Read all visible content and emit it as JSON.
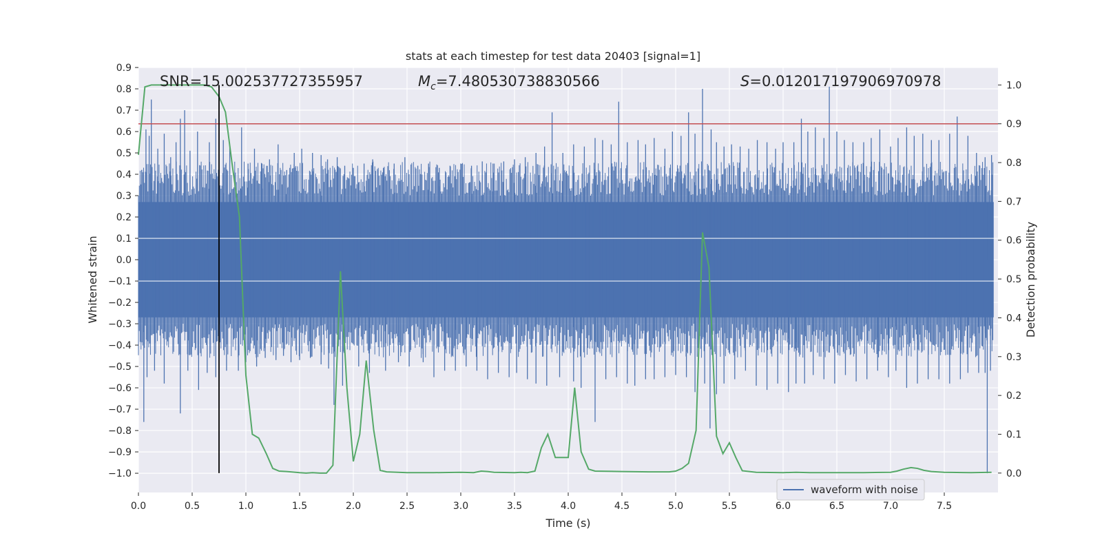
{
  "chart_data": {
    "type": "line",
    "title": "stats at each timestep for test data 20403 [signal=1]",
    "xlabel": "Time (s)",
    "ylabel_left": "Whitened strain",
    "ylabel_right": "Detection probability",
    "annotations": {
      "snr": "SNR=15.002537727355957",
      "mc": "M_c=7.480530738830566",
      "s": "S=0.012017197906970978"
    },
    "xlim": [
      0.0,
      8.0
    ],
    "ylim_left": [
      -1.09,
      0.9
    ],
    "ylim_right": [
      -0.05,
      1.045
    ],
    "x_ticks": [
      0.0,
      0.5,
      1.0,
      1.5,
      2.0,
      2.5,
      3.0,
      3.5,
      4.0,
      4.5,
      5.0,
      5.5,
      6.0,
      6.5,
      7.0,
      7.5
    ],
    "x_tick_labels": [
      "0.0",
      "0.5",
      "1.0",
      "1.5",
      "2.0",
      "2.5",
      "3.0",
      "3.5",
      "4.0",
      "4.5",
      "5.0",
      "5.5",
      "6.0",
      "6.5",
      "7.0",
      "7.5"
    ],
    "y_ticks_left": [
      0.9,
      0.8,
      0.7,
      0.6,
      0.5,
      0.4,
      0.3,
      0.2,
      0.1,
      0.0,
      -0.1,
      -0.2,
      -0.3,
      -0.4,
      -0.5,
      -0.6,
      -0.7,
      -0.8,
      -0.9,
      -1.0
    ],
    "y_tick_labels_left": [
      "0.9",
      "0.8",
      "0.7",
      "0.6",
      "0.5",
      "0.4",
      "0.3",
      "0.2",
      "0.1",
      "0.0",
      "−0.1",
      "−0.2",
      "−0.3",
      "−0.4",
      "−0.5",
      "−0.6",
      "−0.7",
      "−0.8",
      "−0.9",
      "−1.0"
    ],
    "y_ticks_right": [
      1.0,
      0.9,
      0.8,
      0.7,
      0.6,
      0.5,
      0.4,
      0.3,
      0.2,
      0.1,
      0.0
    ],
    "y_tick_labels_right": [
      "1.0",
      "0.9",
      "0.8",
      "0.7",
      "0.6",
      "0.5",
      "0.4",
      "0.3",
      "0.2",
      "0.1",
      "0.0"
    ],
    "grid": true,
    "legend": {
      "placement": "lower-right",
      "entries": [
        {
          "label": "waveform with noise",
          "color": "#4c72b0"
        }
      ]
    },
    "waveform": {
      "name": "waveform with noise",
      "color": "#4c72b0",
      "band_abs": 0.27,
      "peaks_up": [
        [
          0.03,
          0.42
        ],
        [
          0.07,
          0.61
        ],
        [
          0.1,
          0.58
        ],
        [
          0.12,
          0.75
        ],
        [
          0.18,
          0.52
        ],
        [
          0.24,
          0.59
        ],
        [
          0.3,
          0.48
        ],
        [
          0.35,
          0.55
        ],
        [
          0.39,
          0.66
        ],
        [
          0.43,
          0.7
        ],
        [
          0.48,
          0.51
        ],
        [
          0.55,
          0.6
        ],
        [
          0.66,
          0.55
        ],
        [
          0.72,
          0.66
        ],
        [
          0.79,
          0.56
        ],
        [
          0.85,
          0.53
        ],
        [
          0.96,
          0.62
        ],
        [
          1.02,
          0.45
        ],
        [
          1.08,
          0.52
        ],
        [
          1.15,
          0.45
        ],
        [
          1.22,
          0.47
        ],
        [
          1.3,
          0.54
        ],
        [
          1.38,
          0.42
        ],
        [
          1.45,
          0.5
        ],
        [
          1.52,
          0.52
        ],
        [
          1.62,
          0.5
        ],
        [
          1.7,
          0.49
        ],
        [
          1.76,
          0.47
        ],
        [
          1.85,
          0.48
        ],
        [
          1.92,
          0.44
        ],
        [
          2.0,
          0.43
        ],
        [
          2.1,
          0.45
        ],
        [
          2.18,
          0.47
        ],
        [
          2.28,
          0.43
        ],
        [
          2.38,
          0.45
        ],
        [
          2.48,
          0.48
        ],
        [
          2.6,
          0.44
        ],
        [
          2.7,
          0.45
        ],
        [
          2.8,
          0.43
        ],
        [
          2.9,
          0.44
        ],
        [
          3.0,
          0.45
        ],
        [
          3.1,
          0.44
        ],
        [
          3.2,
          0.46
        ],
        [
          3.3,
          0.45
        ],
        [
          3.4,
          0.46
        ],
        [
          3.5,
          0.47
        ],
        [
          3.6,
          0.48
        ],
        [
          3.7,
          0.5
        ],
        [
          3.78,
          0.53
        ],
        [
          3.85,
          0.69
        ],
        [
          3.95,
          0.5
        ],
        [
          4.05,
          0.54
        ],
        [
          4.15,
          0.53
        ],
        [
          4.25,
          0.57
        ],
        [
          4.32,
          0.56
        ],
        [
          4.4,
          0.54
        ],
        [
          4.47,
          0.74
        ],
        [
          4.55,
          0.55
        ],
        [
          4.65,
          0.56
        ],
        [
          4.72,
          0.54
        ],
        [
          4.8,
          0.57
        ],
        [
          4.9,
          0.52
        ],
        [
          4.97,
          0.6
        ],
        [
          5.05,
          0.58
        ],
        [
          5.12,
          0.69
        ],
        [
          5.18,
          0.59
        ],
        [
          5.25,
          0.8
        ],
        [
          5.33,
          0.61
        ],
        [
          5.38,
          0.55
        ],
        [
          5.45,
          0.53
        ],
        [
          5.52,
          0.54
        ],
        [
          5.6,
          0.53
        ],
        [
          5.68,
          0.52
        ],
        [
          5.76,
          0.56
        ],
        [
          5.85,
          0.55
        ],
        [
          5.93,
          0.52
        ],
        [
          6.0,
          0.55
        ],
        [
          6.1,
          0.55
        ],
        [
          6.17,
          0.66
        ],
        [
          6.23,
          0.6
        ],
        [
          6.3,
          0.62
        ],
        [
          6.38,
          0.57
        ],
        [
          6.43,
          0.81
        ],
        [
          6.5,
          0.6
        ],
        [
          6.57,
          0.56
        ],
        [
          6.65,
          0.55
        ],
        [
          6.75,
          0.55
        ],
        [
          6.82,
          0.57
        ],
        [
          6.9,
          0.61
        ],
        [
          7.0,
          0.53
        ],
        [
          7.07,
          0.57
        ],
        [
          7.15,
          0.62
        ],
        [
          7.22,
          0.58
        ],
        [
          7.3,
          0.59
        ],
        [
          7.38,
          0.56
        ],
        [
          7.45,
          0.56
        ],
        [
          7.55,
          0.59
        ],
        [
          7.62,
          0.67
        ],
        [
          7.72,
          0.58
        ],
        [
          7.8,
          0.5
        ],
        [
          7.88,
          0.48
        ],
        [
          7.94,
          0.49
        ]
      ],
      "peaks_down": [
        [
          0.05,
          -0.76
        ],
        [
          0.08,
          -0.55
        ],
        [
          0.15,
          -0.52
        ],
        [
          0.24,
          -0.58
        ],
        [
          0.39,
          -0.72
        ],
        [
          0.46,
          -0.52
        ],
        [
          0.56,
          -0.61
        ],
        [
          0.64,
          -0.53
        ],
        [
          0.72,
          -0.55
        ],
        [
          0.82,
          -0.52
        ],
        [
          0.93,
          -0.52
        ],
        [
          1.0,
          -0.48
        ],
        [
          1.1,
          -0.5
        ],
        [
          1.18,
          -0.46
        ],
        [
          1.28,
          -0.47
        ],
        [
          1.35,
          -0.45
        ],
        [
          1.42,
          -0.48
        ],
        [
          1.5,
          -0.47
        ],
        [
          1.6,
          -0.46
        ],
        [
          1.7,
          -0.49
        ],
        [
          1.77,
          -0.51
        ],
        [
          1.82,
          -0.68
        ],
        [
          1.9,
          -0.59
        ],
        [
          2.05,
          -0.5
        ],
        [
          2.15,
          -0.53
        ],
        [
          2.3,
          -0.52
        ],
        [
          2.42,
          -0.48
        ],
        [
          2.52,
          -0.5
        ],
        [
          2.65,
          -0.48
        ],
        [
          2.75,
          -0.55
        ],
        [
          2.85,
          -0.52
        ],
        [
          2.95,
          -0.52
        ],
        [
          3.05,
          -0.5
        ],
        [
          3.15,
          -0.52
        ],
        [
          3.25,
          -0.56
        ],
        [
          3.35,
          -0.53
        ],
        [
          3.45,
          -0.55
        ],
        [
          3.52,
          -0.53
        ],
        [
          3.62,
          -0.56
        ],
        [
          3.7,
          -0.58
        ],
        [
          3.8,
          -0.59
        ],
        [
          3.92,
          -0.55
        ],
        [
          4.05,
          -0.57
        ],
        [
          4.12,
          -0.6
        ],
        [
          4.25,
          -0.76
        ],
        [
          4.35,
          -0.56
        ],
        [
          4.45,
          -0.55
        ],
        [
          4.55,
          -0.58
        ],
        [
          4.62,
          -0.59
        ],
        [
          4.72,
          -0.56
        ],
        [
          4.8,
          -0.56
        ],
        [
          4.9,
          -0.55
        ],
        [
          5.0,
          -0.54
        ],
        [
          5.1,
          -0.55
        ],
        [
          5.18,
          -0.62
        ],
        [
          5.27,
          -0.58
        ],
        [
          5.32,
          -0.79
        ],
        [
          5.38,
          -0.63
        ],
        [
          5.45,
          -0.58
        ],
        [
          5.55,
          -0.56
        ],
        [
          5.65,
          -0.52
        ],
        [
          5.75,
          -0.59
        ],
        [
          5.85,
          -0.61
        ],
        [
          5.95,
          -0.58
        ],
        [
          6.05,
          -0.62
        ],
        [
          6.12,
          -0.58
        ],
        [
          6.2,
          -0.58
        ],
        [
          6.28,
          -0.54
        ],
        [
          6.38,
          -0.56
        ],
        [
          6.48,
          -0.58
        ],
        [
          6.58,
          -0.54
        ],
        [
          6.68,
          -0.57
        ],
        [
          6.78,
          -0.56
        ],
        [
          6.88,
          -0.52
        ],
        [
          6.98,
          -0.55
        ],
        [
          7.05,
          -0.52
        ],
        [
          7.15,
          -0.6
        ],
        [
          7.25,
          -0.58
        ],
        [
          7.35,
          -0.56
        ],
        [
          7.45,
          -0.56
        ],
        [
          7.55,
          -0.58
        ],
        [
          7.65,
          -0.56
        ],
        [
          7.72,
          -0.53
        ],
        [
          7.82,
          -0.53
        ],
        [
          7.88,
          -0.53
        ],
        [
          7.9,
          -1.0
        ],
        [
          7.93,
          -0.52
        ]
      ]
    },
    "probability": {
      "color": "#55a868",
      "x": [
        0.0,
        0.06,
        0.12,
        0.18,
        0.25,
        0.38,
        0.5,
        0.62,
        0.68,
        0.75,
        0.81,
        0.87,
        0.94,
        1.0,
        1.06,
        1.12,
        1.19,
        1.25,
        1.31,
        1.38,
        1.5,
        1.56,
        1.62,
        1.69,
        1.75,
        1.81,
        1.88,
        1.94,
        2.0,
        2.06,
        2.12,
        2.19,
        2.25,
        2.31,
        2.5,
        2.75,
        3.0,
        3.12,
        3.19,
        3.25,
        3.31,
        3.5,
        3.56,
        3.62,
        3.69,
        3.75,
        3.81,
        3.88,
        4.0,
        4.06,
        4.12,
        4.19,
        4.25,
        4.5,
        4.75,
        4.94,
        5.0,
        5.06,
        5.12,
        5.19,
        5.25,
        5.31,
        5.38,
        5.44,
        5.5,
        5.56,
        5.62,
        5.75,
        6.0,
        6.12,
        6.25,
        6.5,
        6.75,
        7.0,
        7.06,
        7.12,
        7.19,
        7.25,
        7.31,
        7.38,
        7.5,
        7.75,
        7.94
      ],
      "y": [
        0.82,
        0.995,
        1.0,
        1.0,
        1.0,
        1.0,
        1.0,
        1.0,
        0.995,
        0.97,
        0.93,
        0.8,
        0.66,
        0.252,
        0.1,
        0.09,
        0.05,
        0.012,
        0.005,
        0.004,
        0.001,
        0.0,
        0.001,
        0.0,
        0.0,
        0.02,
        0.52,
        0.22,
        0.03,
        0.1,
        0.29,
        0.11,
        0.007,
        0.003,
        0.001,
        0.001,
        0.002,
        0.001,
        0.005,
        0.004,
        0.002,
        0.001,
        0.002,
        0.001,
        0.005,
        0.065,
        0.1,
        0.04,
        0.04,
        0.22,
        0.055,
        0.01,
        0.005,
        0.004,
        0.003,
        0.003,
        0.005,
        0.012,
        0.025,
        0.11,
        0.62,
        0.53,
        0.095,
        0.05,
        0.078,
        0.04,
        0.006,
        0.002,
        0.001,
        0.002,
        0.001,
        0.001,
        0.001,
        0.002,
        0.005,
        0.01,
        0.014,
        0.012,
        0.007,
        0.004,
        0.002,
        0.001,
        0.002
      ]
    },
    "threshold": {
      "y": 0.9,
      "axis": "right",
      "color": "#c44e52"
    },
    "marker_line": {
      "x": 0.75,
      "color": "#000000"
    }
  }
}
